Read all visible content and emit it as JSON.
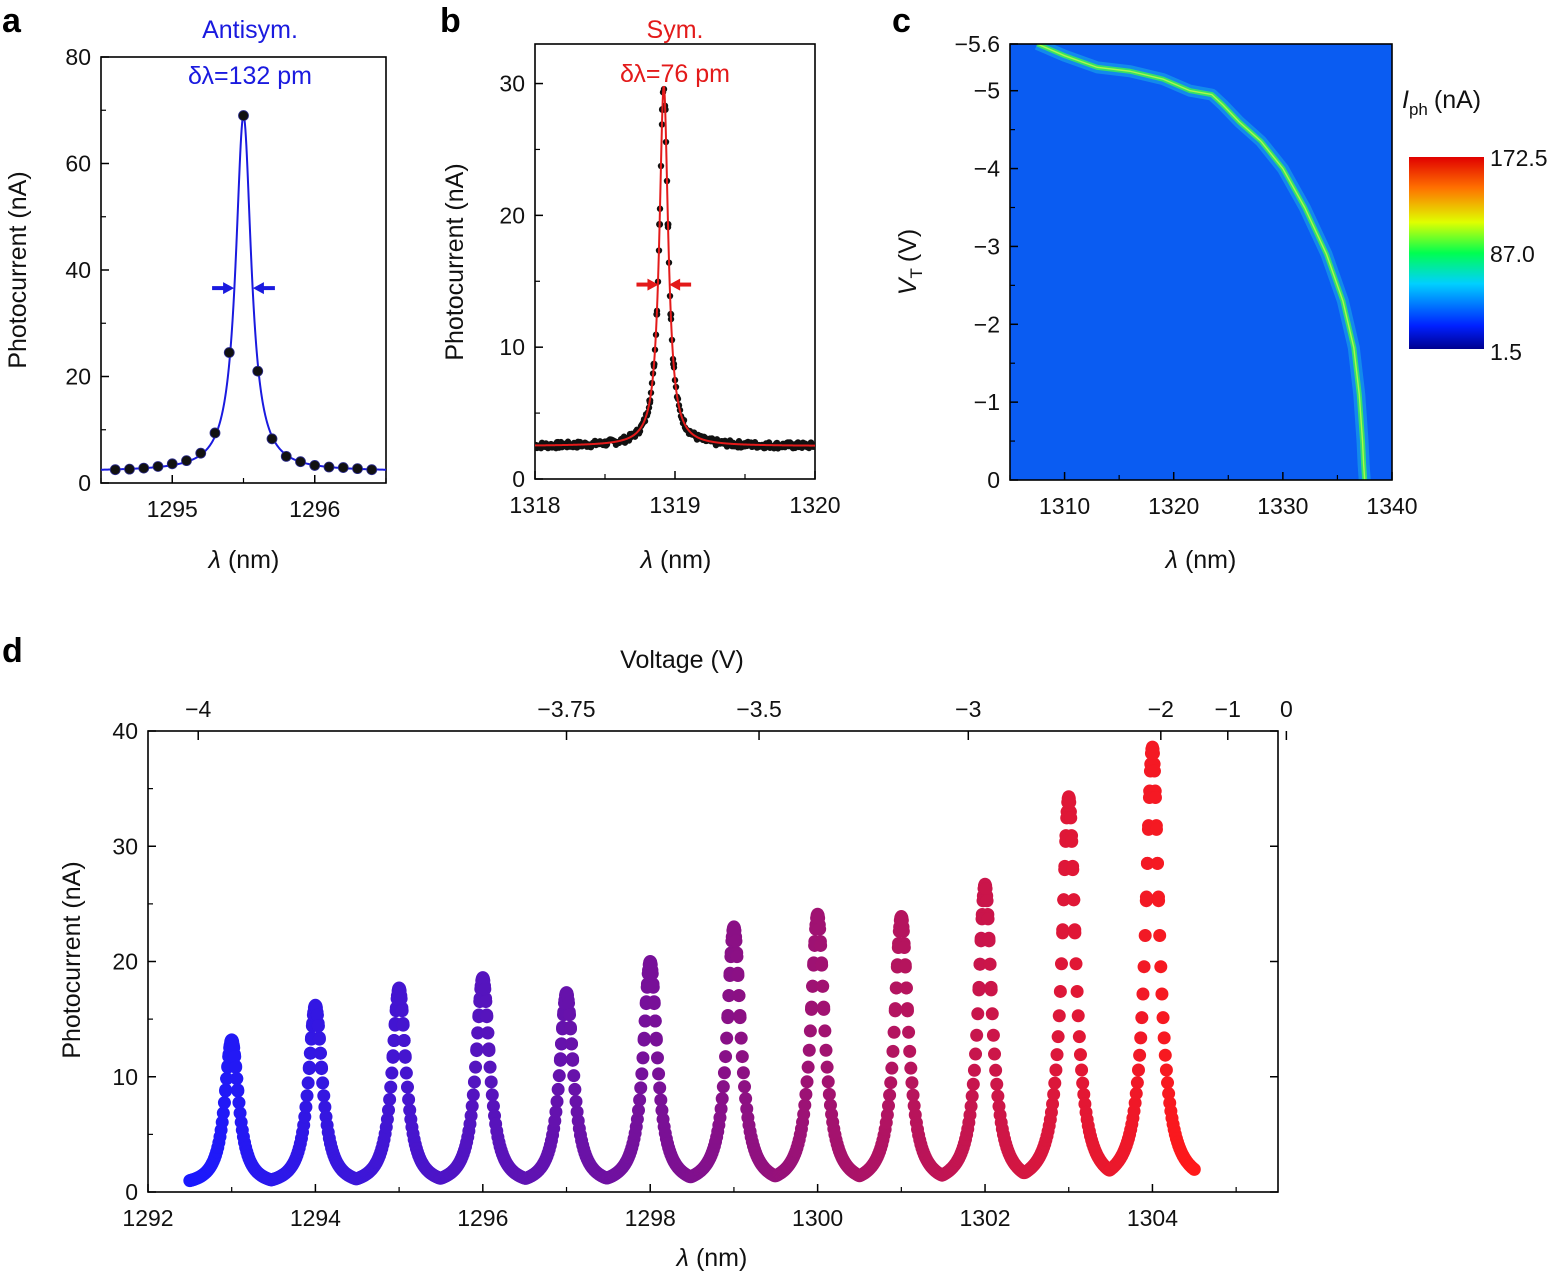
{
  "chart_data": [
    {
      "panel": "a",
      "type": "scatter",
      "title": "Antisym.",
      "annotation": "δλ=132 pm",
      "xlabel_symbol": "λ",
      "xlabel_unit": "(nm)",
      "ylabel": "Photocurrent (nA)",
      "xlim": [
        1294.5,
        1296.5
      ],
      "ylim": [
        0,
        80
      ],
      "xticks": [
        1295,
        1296
      ],
      "yticks": [
        0,
        20,
        40,
        60,
        80
      ],
      "colors": {
        "fit": "#1a1adf",
        "points": "#111111",
        "title": "#1a1adf"
      },
      "fit": {
        "center": 1295.5,
        "fwhm": 0.132,
        "peak": 69,
        "baseline": 2.2
      },
      "points_x": [
        1294.6,
        1294.7,
        1294.8,
        1294.9,
        1295.0,
        1295.1,
        1295.2,
        1295.3,
        1295.4,
        1295.5,
        1295.6,
        1295.7,
        1295.8,
        1295.9,
        1296.0,
        1296.1,
        1296.2,
        1296.3,
        1296.4
      ],
      "points_y": [
        2.5,
        2.6,
        2.8,
        3.1,
        3.6,
        4.2,
        5.6,
        9.4,
        24.5,
        69.0,
        21.0,
        8.3,
        5.0,
        4.0,
        3.3,
        3.0,
        2.9,
        2.7,
        2.5
      ]
    },
    {
      "panel": "b",
      "type": "scatter",
      "title": "Sym.",
      "annotation": "δλ=76 pm",
      "xlabel_symbol": "λ",
      "xlabel_unit": "(nm)",
      "ylabel": "Photocurrent (nA)",
      "xlim": [
        1318,
        1320
      ],
      "ylim": [
        0,
        33
      ],
      "xticks": [
        1318,
        1319,
        1320
      ],
      "yticks": [
        0,
        10,
        20,
        30
      ],
      "colors": {
        "fit": "#e31a1a",
        "points": "#111111",
        "title": "#e31a1a"
      },
      "fit": {
        "center": 1318.92,
        "fwhm": 0.076,
        "peak": 29.8,
        "baseline": 2.5
      }
    },
    {
      "panel": "c",
      "type": "heatmap",
      "xlabel_symbol": "λ",
      "xlabel_unit": "(nm)",
      "ylabel_symbol": "V",
      "ylabel_sub": "T",
      "ylabel_unit": "(V)",
      "xlim": [
        1305,
        1340
      ],
      "ylim": [
        0,
        -5.6
      ],
      "xticks": [
        1310,
        1320,
        1330,
        1340
      ],
      "yticks": [
        0,
        -1,
        -2,
        -3,
        -4,
        -5,
        -5.6
      ],
      "yticklabels": [
        "0",
        "−1",
        "−2",
        "−3",
        "−4",
        "−5",
        "−5.6"
      ],
      "colorbar": {
        "label_symbol": "I",
        "label_sub": "ph",
        "label_unit": "(nA)",
        "min": 1.5,
        "mid": 87.0,
        "max": 172.5,
        "labels": [
          "172.5",
          "87.0",
          "1.5"
        ]
      },
      "background_color": "#0a5cf2",
      "ridge_color": "#36e06a",
      "ridge": {
        "lambda": [
          1307.5,
          1310,
          1313,
          1316,
          1319,
          1321.5,
          1323.5,
          1324.5,
          1326,
          1328,
          1330,
          1332,
          1334,
          1335.5,
          1336.5,
          1337.0,
          1337.3,
          1337.4,
          1337.5
        ],
        "voltage": [
          -5.6,
          -5.45,
          -5.3,
          -5.25,
          -5.15,
          -5.0,
          -4.95,
          -4.82,
          -4.6,
          -4.35,
          -4.0,
          -3.5,
          -2.9,
          -2.3,
          -1.7,
          -1.1,
          -0.5,
          -0.2,
          0
        ]
      }
    },
    {
      "panel": "d",
      "type": "scatter",
      "xlabel_symbol": "λ",
      "xlabel_unit": "(nm)",
      "ylabel": "Photocurrent (nA)",
      "top_xlabel": "Voltage (V)",
      "xlim": [
        1292,
        1305.5
      ],
      "ylim": [
        0,
        40
      ],
      "xticks": [
        1292,
        1294,
        1296,
        1298,
        1300,
        1302,
        1304
      ],
      "yticks": [
        0,
        10,
        20,
        30,
        40
      ],
      "top_ticks_lambda": [
        1292.6,
        1297.0,
        1299.3,
        1301.8,
        1304.1,
        1304.9,
        1305.6
      ],
      "top_ticklabels": [
        "−4",
        "−3.75",
        "−3.5",
        "−3",
        "−2",
        "−1",
        "0"
      ],
      "color_start": "#1a1aff",
      "color_end": "#ff1a1a",
      "peaks": [
        {
          "center": 1293.0,
          "height": 13.2
        },
        {
          "center": 1294.0,
          "height": 16.2
        },
        {
          "center": 1295.0,
          "height": 17.7
        },
        {
          "center": 1296.0,
          "height": 18.6
        },
        {
          "center": 1297.0,
          "height": 17.3
        },
        {
          "center": 1298.0,
          "height": 20.0
        },
        {
          "center": 1299.0,
          "height": 23.0
        },
        {
          "center": 1300.0,
          "height": 24.1
        },
        {
          "center": 1301.0,
          "height": 23.9
        },
        {
          "center": 1302.0,
          "height": 26.7
        },
        {
          "center": 1303.0,
          "height": 34.3
        },
        {
          "center": 1304.0,
          "height": 38.6
        }
      ],
      "baseline_min": 0.5,
      "range": [
        1292.5,
        1304.5
      ]
    }
  ]
}
